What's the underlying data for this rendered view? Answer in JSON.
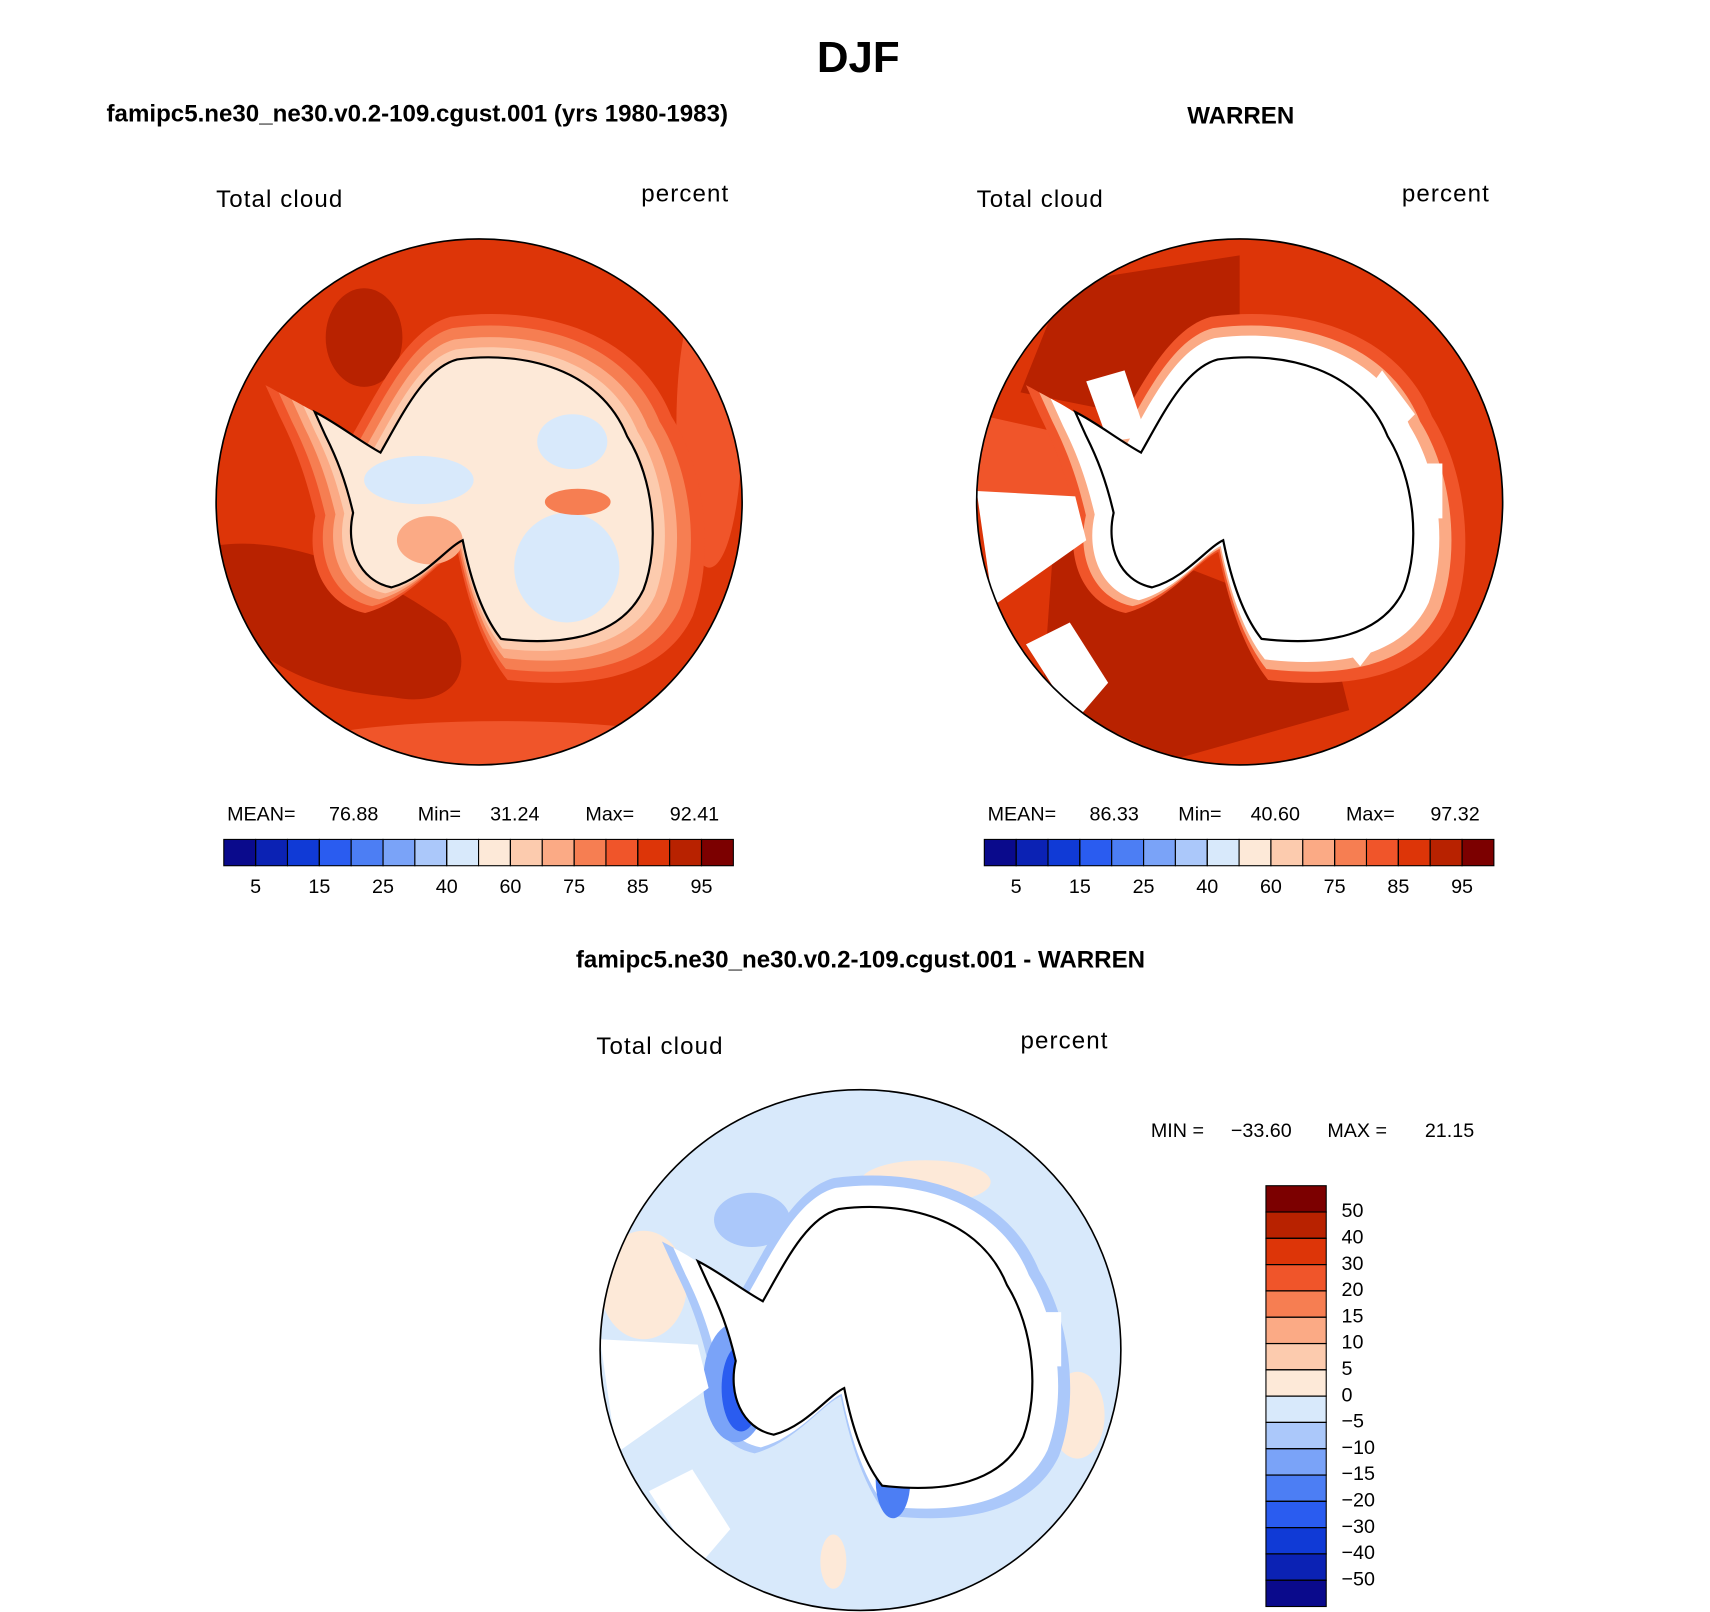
{
  "title": "DJF",
  "panels": [
    {
      "title": "famipc5.ne30_ne30.v0.2-109.cgust.001 (yrs 1980-1983)",
      "variable": "Total cloud",
      "units": "percent",
      "stats": {
        "names": [
          "MEAN=",
          "Min=",
          "Max="
        ],
        "values": [
          76.88,
          31.24,
          92.41
        ]
      },
      "colorbar": {
        "colors": [
          "#0a0a8c",
          "#0b22b4",
          "#103ad6",
          "#2a5cf0",
          "#4c7ef4",
          "#7aa3f8",
          "#abc8fa",
          "#d8e9fb",
          "#fde9d8",
          "#fccbae",
          "#fbaa85",
          "#f67e52",
          "#f0552a",
          "#dd3508",
          "#b82200",
          "#7c0000"
        ],
        "ticks": [
          5,
          15,
          25,
          40,
          60,
          75,
          85,
          95
        ]
      }
    },
    {
      "title": "WARREN",
      "variable": "Total cloud",
      "units": "percent",
      "stats": {
        "names": [
          "MEAN=",
          "Min=",
          "Max="
        ],
        "values": [
          86.33,
          40.6,
          97.32
        ],
        "value_labels": [
          "86.33",
          "40.60",
          "97.32"
        ]
      },
      "colorbar": {
        "colors": [
          "#0a0a8c",
          "#0b22b4",
          "#103ad6",
          "#2a5cf0",
          "#4c7ef4",
          "#7aa3f8",
          "#abc8fa",
          "#d8e9fb",
          "#fde9d8",
          "#fccbae",
          "#fbaa85",
          "#f67e52",
          "#f0552a",
          "#dd3508",
          "#b82200",
          "#7c0000"
        ],
        "ticks": [
          5,
          15,
          25,
          40,
          60,
          75,
          85,
          95
        ]
      }
    },
    {
      "title": "famipc5.ne30_ne30.v0.2-109.cgust.001 - WARREN",
      "variable": "Total cloud",
      "units": "percent",
      "stats": {
        "names": [
          "MIN =",
          "MAX ="
        ],
        "values": [
          -33.6,
          21.15
        ],
        "value_labels": [
          "−33.60",
          "21.15"
        ]
      },
      "colorbar": {
        "colors": [
          "#7c0000",
          "#b82200",
          "#dd3508",
          "#f0552a",
          "#f67e52",
          "#fbaa85",
          "#fccbae",
          "#fde9d8",
          "#d8e9fb",
          "#abc8fa",
          "#7aa3f8",
          "#4c7ef4",
          "#2a5cf0",
          "#103ad6",
          "#0b22b4",
          "#0a0a8c"
        ],
        "ticks": [
          50,
          40,
          30,
          20,
          15,
          10,
          5,
          0,
          {
            "value": -5,
            "label": "−5"
          },
          {
            "value": -10,
            "label": "−10"
          },
          {
            "value": -15,
            "label": "−15"
          },
          {
            "value": -20,
            "label": "−20"
          },
          {
            "value": -30,
            "label": "−30"
          },
          {
            "value": -40,
            "label": "−40"
          },
          {
            "value": -50,
            "label": "−50"
          }
        ]
      }
    }
  ]
}
